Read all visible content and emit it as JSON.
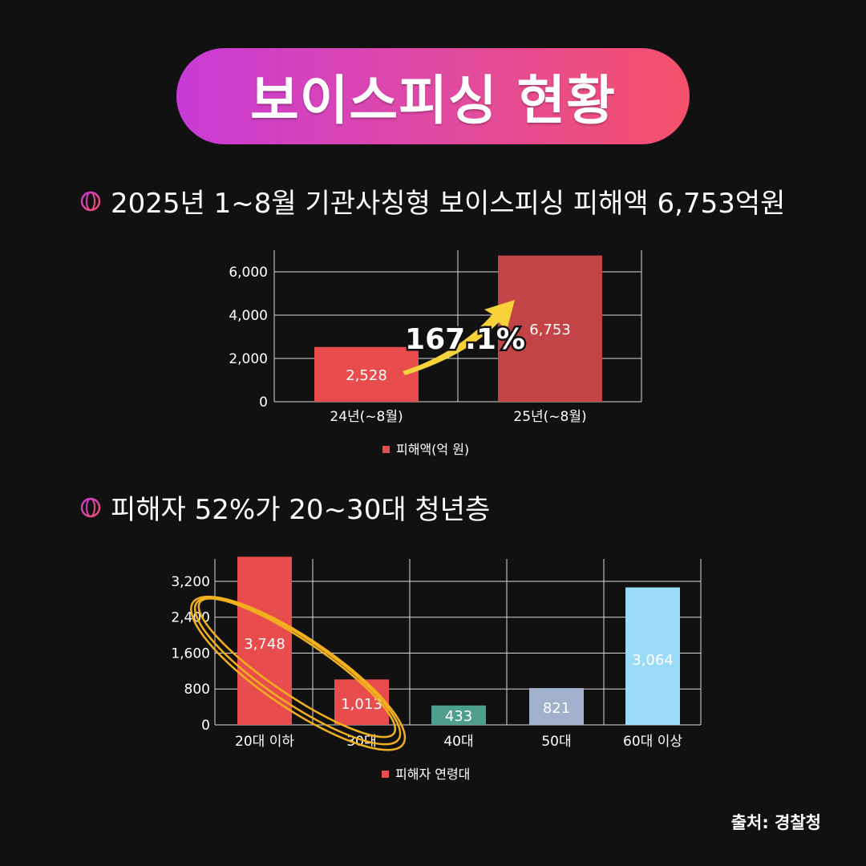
{
  "title": "보이스피싱 현황",
  "section1": {
    "heading": "2025년 1~8월 기관사칭형 보이스피싱 피해액 6,753억원"
  },
  "section2": {
    "heading": "피해자 52%가 20~30대 청년층"
  },
  "source": "출처: 경찰청",
  "colors": {
    "pill_start": "#c93ad6",
    "pill_end": "#f5506a",
    "bar_red": "#e84c4c",
    "bar_darkred": "#c24446",
    "bar_teal": "#4e9e8c",
    "bar_lavender": "#a3b0cc",
    "bar_lightblue": "#9adcf8",
    "arrow_yellow": "#f7d23a",
    "scribble": "#f2b01e"
  },
  "chart_data": [
    {
      "type": "bar",
      "categories": [
        "24년(~8월)",
        "25년(~8월)"
      ],
      "values": [
        2528,
        6753
      ],
      "value_labels": [
        "2,528",
        "6,753"
      ],
      "yticks": [
        "0",
        "2,000",
        "4,000",
        "6,000"
      ],
      "ytick_values": [
        0,
        2000,
        4000,
        6000
      ],
      "ylim": [
        0,
        7000
      ],
      "legend": "피해액(억 원)",
      "annotation": "167.1%",
      "grid": true
    },
    {
      "type": "bar",
      "categories": [
        "20대 이하",
        "30대",
        "40대",
        "50대",
        "60대 이상"
      ],
      "values": [
        3748,
        1013,
        433,
        821,
        3064
      ],
      "value_labels": [
        "3,748",
        "1,013",
        "433",
        "821",
        "3,064"
      ],
      "yticks": [
        "0",
        "800",
        "1,600",
        "2,400",
        "3,200"
      ],
      "ytick_values": [
        0,
        800,
        1600,
        2400,
        3200
      ],
      "ylim": [
        0,
        3700
      ],
      "legend": "피해자 연령대",
      "grid": true
    }
  ]
}
